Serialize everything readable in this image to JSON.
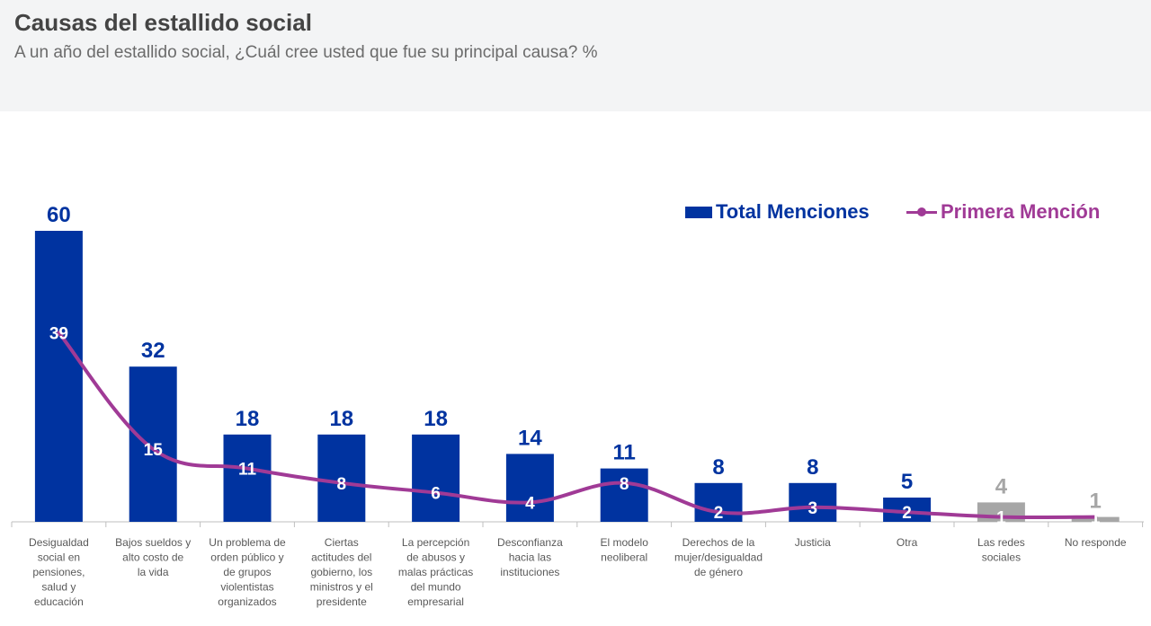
{
  "header": {
    "title": "Causas del estallido social",
    "subtitle": "A un año del estallido social, ¿Cuál cree usted que fue su principal causa? %"
  },
  "legend": {
    "bar_label": "Total Menciones",
    "line_label": "Primera Mención"
  },
  "colors": {
    "bar": "#0033a0",
    "bar_muted": "#a6a6a6",
    "line": "#a03a96",
    "header_bg": "#f3f4f5"
  },
  "chart_data": {
    "type": "bar",
    "categories": [
      "Desigualdad social en pensiones, salud y educación",
      "Bajos sueldos y alto costo de la vida",
      "Un problema de orden público y de grupos violentistas organizados",
      "Ciertas actitudes del gobierno, los ministros y el presidente",
      "La percepción de abusos y malas prácticas del mundo empresarial",
      "Desconfianza hacia las instituciones",
      "El modelo neoliberal",
      "Derechos de la mujer/desigualdad de género",
      "Justicia",
      "Otra",
      "Las redes sociales",
      "No responde"
    ],
    "series": [
      {
        "name": "Total Menciones",
        "type": "bar",
        "values": [
          60,
          32,
          18,
          18,
          18,
          14,
          11,
          8,
          8,
          5,
          4,
          1
        ]
      },
      {
        "name": "Primera Mención",
        "type": "line",
        "values": [
          39,
          15,
          11,
          8,
          6,
          4,
          8,
          2,
          3,
          2,
          1,
          1
        ]
      }
    ],
    "muted_categories": [
      "Las redes sociales",
      "No responde"
    ],
    "legend_position": "top-right",
    "ylim": [
      0,
      60
    ],
    "grid": false
  }
}
